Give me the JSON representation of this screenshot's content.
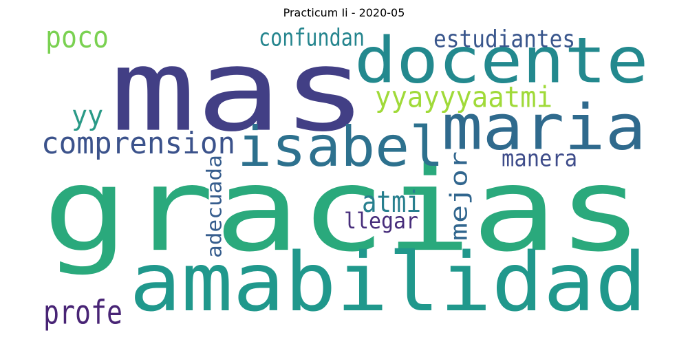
{
  "title": "Practicum Ii - 2020-05",
  "words": [
    {
      "text": "gracias",
      "color": "#2aa97c"
    },
    {
      "text": "mas",
      "color": "#423f85"
    },
    {
      "text": "amabilidad",
      "color": "#20988c"
    },
    {
      "text": "docente",
      "color": "#23898e"
    },
    {
      "text": "maria",
      "color": "#2f6a8d"
    },
    {
      "text": "isabel",
      "color": "#2d718e"
    },
    {
      "text": "comprension",
      "color": "#3b528b"
    },
    {
      "text": "yyayyyaatmi",
      "color": "#a0da39"
    },
    {
      "text": "poco",
      "color": "#7ad151"
    },
    {
      "text": "confundan",
      "color": "#25858e"
    },
    {
      "text": "estudiantes",
      "color": "#39568c"
    },
    {
      "text": "yy",
      "color": "#2a9a87"
    },
    {
      "text": "atmi",
      "color": "#277f8e"
    },
    {
      "text": "llegar",
      "color": "#472d7b"
    },
    {
      "text": "manera",
      "color": "#3e4c8a"
    },
    {
      "text": "mejor",
      "color": "#31668e"
    },
    {
      "text": "adecuada",
      "color": "#365d8d"
    },
    {
      "text": "profe",
      "color": "#482475"
    }
  ]
}
